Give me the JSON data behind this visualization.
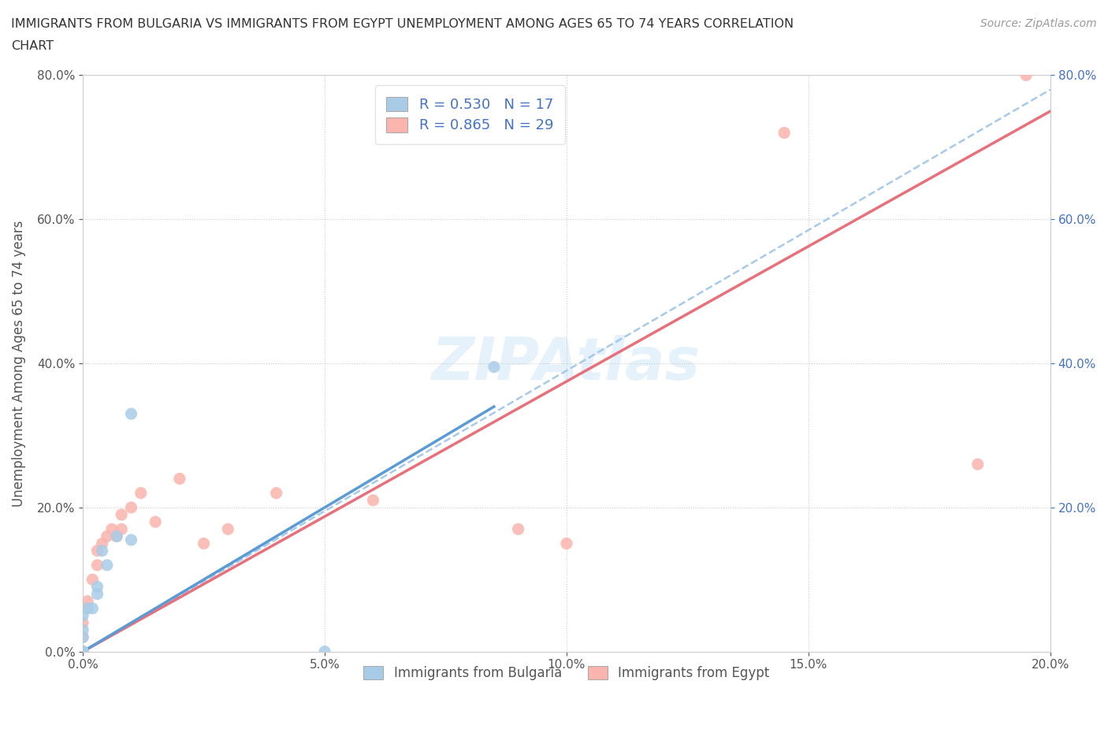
{
  "title": "IMMIGRANTS FROM BULGARIA VS IMMIGRANTS FROM EGYPT UNEMPLOYMENT AMONG AGES 65 TO 74 YEARS CORRELATION\nCHART",
  "source_text": "Source: ZipAtlas.com",
  "ylabel": "Unemployment Among Ages 65 to 74 years",
  "watermark": "ZIPAtlas",
  "xlim": [
    0.0,
    0.2
  ],
  "ylim": [
    0.0,
    0.8
  ],
  "xtick_vals": [
    0.0,
    0.05,
    0.1,
    0.15,
    0.2
  ],
  "ytick_vals": [
    0.0,
    0.2,
    0.4,
    0.6,
    0.8
  ],
  "right_ytick_vals": [
    0.2,
    0.4,
    0.6,
    0.8
  ],
  "bulgaria_scatter_color": "#a8cce8",
  "egypt_scatter_color": "#fbb4ae",
  "bulgaria_line_color": "#5b9bd5",
  "egypt_line_color": "#e8707a",
  "trend_line_color": "#9ec4e8",
  "R_bulgaria": 0.53,
  "N_bulgaria": 17,
  "R_egypt": 0.865,
  "N_egypt": 29,
  "bulgaria_x": [
    0.0,
    0.0,
    0.0,
    0.0,
    0.0,
    0.0,
    0.001,
    0.002,
    0.003,
    0.003,
    0.004,
    0.005,
    0.007,
    0.01,
    0.01,
    0.05,
    0.085
  ],
  "bulgaria_y": [
    0.0,
    0.0,
    0.0,
    0.02,
    0.03,
    0.05,
    0.06,
    0.06,
    0.08,
    0.09,
    0.14,
    0.12,
    0.16,
    0.33,
    0.155,
    0.0,
    0.395
  ],
  "egypt_x": [
    0.0,
    0.0,
    0.0,
    0.0,
    0.0,
    0.0,
    0.001,
    0.002,
    0.003,
    0.003,
    0.004,
    0.005,
    0.006,
    0.007,
    0.008,
    0.008,
    0.01,
    0.012,
    0.015,
    0.02,
    0.025,
    0.03,
    0.04,
    0.06,
    0.09,
    0.1,
    0.145,
    0.185,
    0.195
  ],
  "egypt_y": [
    0.0,
    0.0,
    0.0,
    0.02,
    0.04,
    0.06,
    0.07,
    0.1,
    0.12,
    0.14,
    0.15,
    0.16,
    0.17,
    0.16,
    0.17,
    0.19,
    0.2,
    0.22,
    0.18,
    0.24,
    0.15,
    0.17,
    0.22,
    0.21,
    0.17,
    0.15,
    0.72,
    0.26,
    0.8
  ],
  "legend_label_bulgaria": "Immigrants from Bulgaria",
  "legend_label_egypt": "Immigrants from Egypt",
  "bulgaria_trendline_x": [
    0.0,
    0.085
  ],
  "bulgaria_trendline_y": [
    0.0,
    0.34
  ],
  "egypt_trendline_x": [
    0.0,
    0.2
  ],
  "egypt_trendline_y": [
    0.0,
    0.75
  ],
  "grey_trendline_x": [
    0.0,
    0.2
  ],
  "grey_trendline_y": [
    0.0,
    0.78
  ]
}
